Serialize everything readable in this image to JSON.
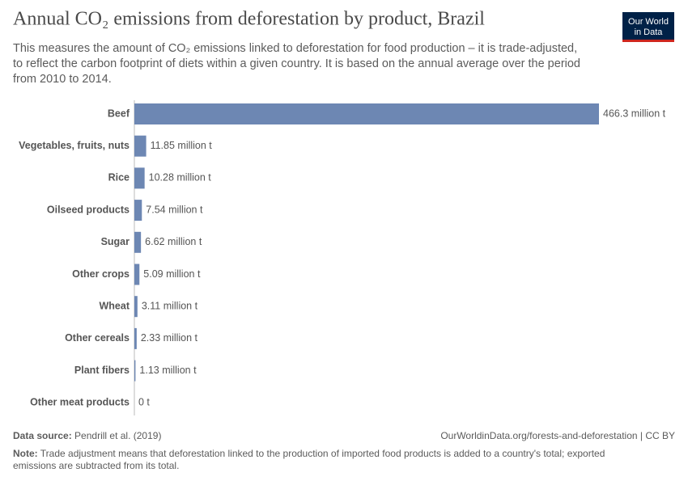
{
  "chart_data": {
    "type": "bar",
    "orientation": "horizontal",
    "title": "Annual CO₂ emissions from deforestation by product, Brazil",
    "subtitle": [
      "This measures the amount of CO₂ emissions linked to deforestation for food production – it is trade-adjusted,",
      "to reflect the carbon footprint of diets within a given country. It is based on the annual average over the period",
      "from 2010 to 2014."
    ],
    "categories": [
      "Beef",
      "Vegetables, fruits, nuts",
      "Rice",
      "Oilseed products",
      "Sugar",
      "Other crops",
      "Wheat",
      "Other cereals",
      "Plant fibers",
      "Other meat products"
    ],
    "values": [
      466.3,
      11.85,
      10.28,
      7.54,
      6.62,
      5.09,
      3.11,
      2.33,
      1.13,
      0
    ],
    "value_labels": [
      "466.3 million t",
      "11.85 million t",
      "10.28 million t",
      "7.54 million t",
      "6.62 million t",
      "5.09 million t",
      "3.11 million t",
      "2.33 million t",
      "1.13 million t",
      "0 t"
    ],
    "color": "#6d87b3"
  },
  "logo": [
    "Our World",
    "in Data"
  ],
  "footer": {
    "source_label": "Data source:",
    "source": "Pendrill et al. (2019)",
    "url": "OurWorldinData.org/forests-and-deforestation | CC BY",
    "note_label": "Note:",
    "note": [
      "Trade adjustment means that deforestation linked to the production of imported food products is added to a country's total; exported",
      "emissions are subtracted from its total."
    ]
  }
}
